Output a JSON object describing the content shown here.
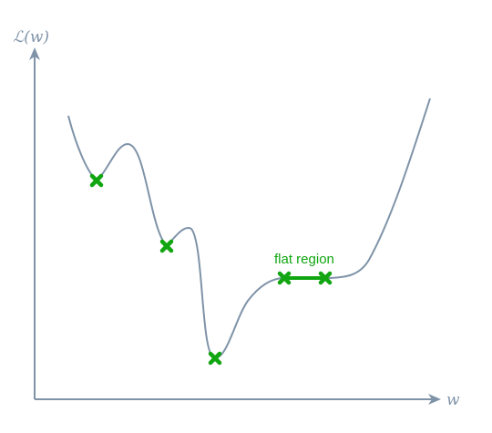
{
  "axes": {
    "y_label": "ℒ(w)",
    "x_label": "w"
  },
  "annotations": {
    "flat_region": "flat region"
  },
  "colors": {
    "axis": "#7f93a8",
    "curve": "#7f93a8",
    "marker": "#11a611"
  },
  "markers": [
    {
      "name": "local-minimum-1"
    },
    {
      "name": "local-minimum-2"
    },
    {
      "name": "global-minimum"
    },
    {
      "name": "flat-region-start"
    },
    {
      "name": "flat-region-end"
    }
  ]
}
